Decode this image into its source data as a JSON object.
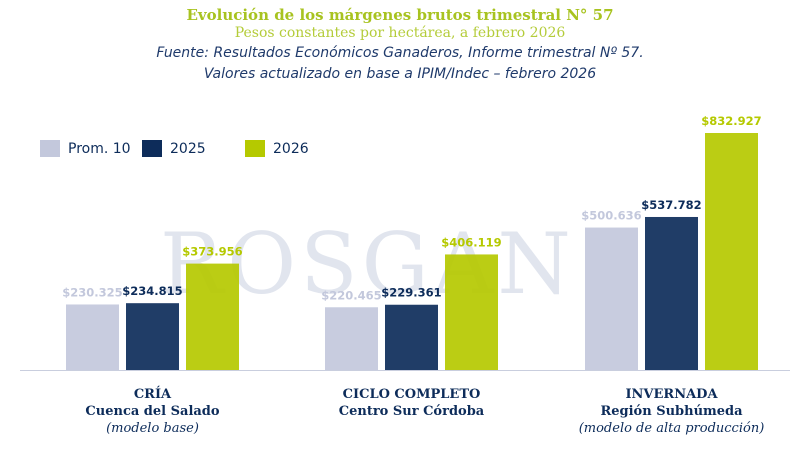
{
  "header": {
    "title": "Evolución de los márgenes brutos trimestral N° 57",
    "subtitle": "Pesos constantes por hectárea, a febrero 2026",
    "source1": "Fuente: Resultados Económicos Ganaderos, Informe trimestral Nº 57.",
    "source2": "Valores actualizado en base a IPIM/Indec – febrero 2026"
  },
  "watermark": "ROSGAN",
  "chart_data": {
    "type": "bar",
    "title": "Evolución de los márgenes brutos trimestral N° 57",
    "ylabel": "Pesos constantes por hectárea",
    "legend_position": "top-left",
    "grid": false,
    "categories": [
      {
        "name": "CRÍA",
        "line2": "Cuenca del Salado",
        "line3": "(modelo base)"
      },
      {
        "name": "CICLO COMPLETO",
        "line2": "Centro Sur Córdoba",
        "line3": ""
      },
      {
        "name": "INVERNADA",
        "line2": "Región Subhúmeda",
        "line3": "(modelo de alta producción)"
      }
    ],
    "series": [
      {
        "name": "Prom. 10",
        "color": "#c3c8dc",
        "label_color": "#c3c8dc",
        "values": [
          230325,
          220465,
          500636
        ],
        "labels": [
          "$230.325",
          "$220.465",
          "$500.636"
        ]
      },
      {
        "name": "2025",
        "color": "#0d2c5a",
        "label_color": "#0d2c5a",
        "values": [
          234815,
          229361,
          537782
        ],
        "labels": [
          "$234.815",
          "$229.361",
          "$537.782"
        ]
      },
      {
        "name": "2026",
        "color": "#b5c900",
        "label_color": "#b5c900",
        "values": [
          373956,
          406119,
          832927
        ],
        "labels": [
          "$373.956",
          "$406.119",
          "$832.927"
        ]
      }
    ],
    "ylim": [
      0,
      832927
    ]
  }
}
